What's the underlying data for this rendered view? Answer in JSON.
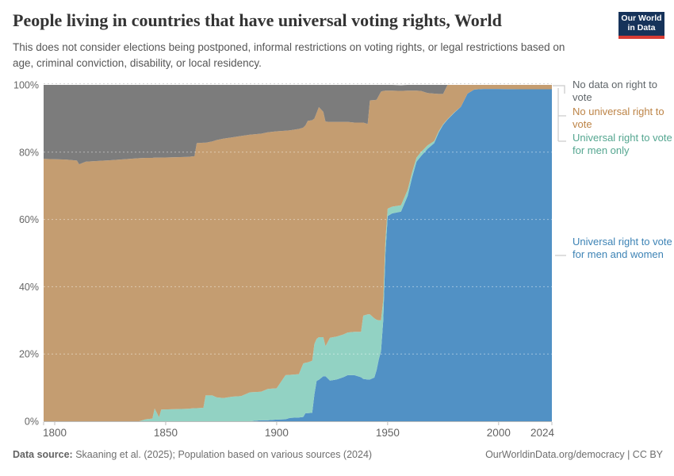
{
  "header": {
    "title": "People living in countries that have universal voting rights, World",
    "subtitle": "This does not consider elections being postponed, informal restrictions on voting rights, or legal restrictions based on age, criminal conviction, disability, or local residency.",
    "logo": {
      "line1": "Our World",
      "line2": "in Data",
      "bg_color": "#16335a",
      "stripe_color": "#d73c34"
    }
  },
  "chart_data": {
    "type": "area",
    "stacked": true,
    "unit": "% of world population",
    "x_range": [
      1795,
      2024
    ],
    "ylim": [
      0,
      100
    ],
    "grid": true,
    "gridlines_pct": [
      20,
      40,
      60,
      80,
      100
    ],
    "legend_position": "right",
    "x": [
      1795,
      1805,
      1810,
      1811,
      1814,
      1825,
      1838,
      1841,
      1844,
      1845,
      1847,
      1848,
      1860,
      1863,
      1864,
      1867,
      1868,
      1871,
      1873,
      1876,
      1880,
      1884,
      1888,
      1893,
      1896,
      1900,
      1904,
      1906,
      1910,
      1912,
      1913,
      1914,
      1916,
      1917,
      1918,
      1919,
      1921,
      1922,
      1924,
      1927,
      1930,
      1932,
      1935,
      1938,
      1939,
      1941,
      1942,
      1944,
      1945,
      1946,
      1947,
      1948,
      1949,
      1950,
      1952,
      1956,
      1959,
      1961,
      1963,
      1965,
      1968,
      1971,
      1973,
      1975,
      1977,
      1980,
      1983,
      1986,
      1989,
      1993,
      2000,
      2010,
      2024
    ],
    "series": [
      {
        "id": "men-and-women",
        "name": "Universal right to vote for men and women",
        "color": "#5191c5",
        "values": [
          0,
          0,
          0,
          0,
          0,
          0,
          0,
          0,
          0,
          0,
          0,
          0,
          0,
          0,
          0,
          0,
          0,
          0,
          0,
          0,
          0,
          0,
          0,
          0.3,
          0.3,
          0.5,
          0.6,
          1.0,
          1.1,
          1.3,
          2.4,
          2.4,
          2.5,
          8,
          12,
          12.3,
          13.4,
          13.4,
          12.1,
          12.4,
          13.1,
          13.7,
          13.7,
          13.1,
          12.6,
          12.4,
          12.4,
          13.0,
          15.2,
          18.4,
          20.8,
          30,
          50,
          61,
          61.8,
          62.3,
          67,
          72.5,
          77.2,
          78.8,
          81,
          82.7,
          85.8,
          88.1,
          89.7,
          91.7,
          93.5,
          97.4,
          98.6,
          98.8,
          98.8,
          98.7,
          98.7
        ]
      },
      {
        "id": "men-only",
        "name": "Universal right to vote for men only",
        "color": "#92d2c3",
        "values": [
          0,
          0,
          0,
          0,
          0,
          0,
          0,
          0.6,
          0.8,
          3.8,
          1.2,
          3.5,
          3.7,
          3.9,
          3.9,
          4.0,
          7.7,
          7.7,
          7.1,
          6.9,
          7.3,
          7.5,
          8.6,
          8.5,
          9.3,
          9.3,
          13.1,
          12.8,
          12.9,
          15.9,
          15.0,
          15.1,
          15.5,
          15.0,
          12.5,
          12.7,
          11.6,
          8.9,
          12.7,
          12.8,
          12.7,
          12.7,
          12.9,
          13.5,
          18.8,
          19.4,
          19.4,
          17.6,
          15.0,
          11.6,
          9.2,
          6.0,
          4.0,
          2.2,
          2.0,
          1.9,
          1.8,
          1.5,
          1.2,
          1.2,
          1.0,
          0.6,
          0.4,
          0.2,
          0.1,
          0.1,
          0,
          0,
          0,
          0,
          0,
          0,
          0
        ]
      },
      {
        "id": "no-universal",
        "name": "No universal right to vote",
        "color": "#c49d71",
        "values": [
          78,
          77.8,
          77.5,
          76.4,
          77.2,
          77.6,
          78.2,
          77.7,
          77.5,
          74.6,
          77.2,
          74.9,
          74.9,
          74.9,
          78.8,
          78.8,
          75.1,
          75.5,
          76.5,
          77.1,
          77.1,
          77.3,
          76.6,
          76.7,
          76.3,
          76.4,
          72.7,
          72.7,
          72.9,
          70.1,
          70.6,
          71.8,
          71.5,
          67.0,
          67.2,
          68.4,
          67.0,
          66.8,
          64.2,
          63.8,
          63.2,
          62.6,
          62.2,
          62.2,
          57.4,
          56.6,
          63.6,
          64.9,
          65.4,
          66.8,
          68.0,
          62.2,
          44.3,
          35.1,
          34.5,
          34.0,
          29.5,
          24.3,
          19.9,
          18.2,
          15.6,
          14.1,
          11.1,
          9.0,
          10.2,
          8.2,
          6.5,
          2.6,
          1.4,
          1.2,
          1.2,
          1.3,
          1.3
        ]
      },
      {
        "id": "no-data",
        "name": "No data on right to vote",
        "color": "#7c7c7c",
        "values": [
          22,
          22.2,
          22.5,
          23.6,
          22.8,
          22.4,
          21.8,
          21.7,
          21.7,
          21.6,
          21.6,
          21.6,
          21.4,
          21.2,
          17.3,
          17.2,
          17.2,
          16.8,
          16.4,
          16.0,
          15.6,
          15.2,
          14.8,
          14.5,
          14.1,
          13.8,
          13.6,
          13.5,
          13.1,
          12.7,
          12.0,
          10.7,
          10.5,
          10.0,
          8.3,
          6.6,
          8.0,
          10.9,
          11.0,
          11.0,
          11.0,
          11.0,
          11.2,
          11.2,
          11.2,
          11.6,
          4.6,
          4.5,
          4.4,
          3.2,
          2.0,
          1.8,
          1.7,
          1.7,
          1.7,
          1.7,
          1.7,
          1.7,
          1.7,
          1.8,
          2.4,
          2.6,
          2.7,
          2.7,
          0,
          0,
          0,
          0,
          0,
          0,
          0,
          0,
          0
        ]
      }
    ],
    "yticks": [
      {
        "label": "0%",
        "pct": 0
      },
      {
        "label": "20%",
        "pct": 20
      },
      {
        "label": "40%",
        "pct": 40
      },
      {
        "label": "60%",
        "pct": 60
      },
      {
        "label": "80%",
        "pct": 80
      },
      {
        "label": "100%",
        "pct": 100
      }
    ],
    "xticks": [
      {
        "label": "1800",
        "year": 1800,
        "dx": 0
      },
      {
        "label": "1850",
        "year": 1850,
        "dx": 0
      },
      {
        "label": "1900",
        "year": 1900,
        "dx": 0
      },
      {
        "label": "1950",
        "year": 1950,
        "dx": 0
      },
      {
        "label": "2000",
        "year": 2000,
        "dx": 0
      },
      {
        "label": "2024",
        "year": 2024,
        "dx": -12
      }
    ]
  },
  "legend": {
    "items": [
      {
        "label": "No data on right to vote",
        "text_color": "#5f6569"
      },
      {
        "label": "No universal right to vote",
        "text_color": "#bd8447"
      },
      {
        "label": "Universal right to vote for men only",
        "text_color": "#54a690"
      },
      {
        "label": "Universal right to vote for men and women",
        "text_color": "#3d83b5"
      }
    ]
  },
  "footer": {
    "source_label": "Data source:",
    "source_text": " Skaaning et al. (2025); Population based on various sources (2024)",
    "right_text": "OurWorldinData.org/democracy | CC BY"
  }
}
